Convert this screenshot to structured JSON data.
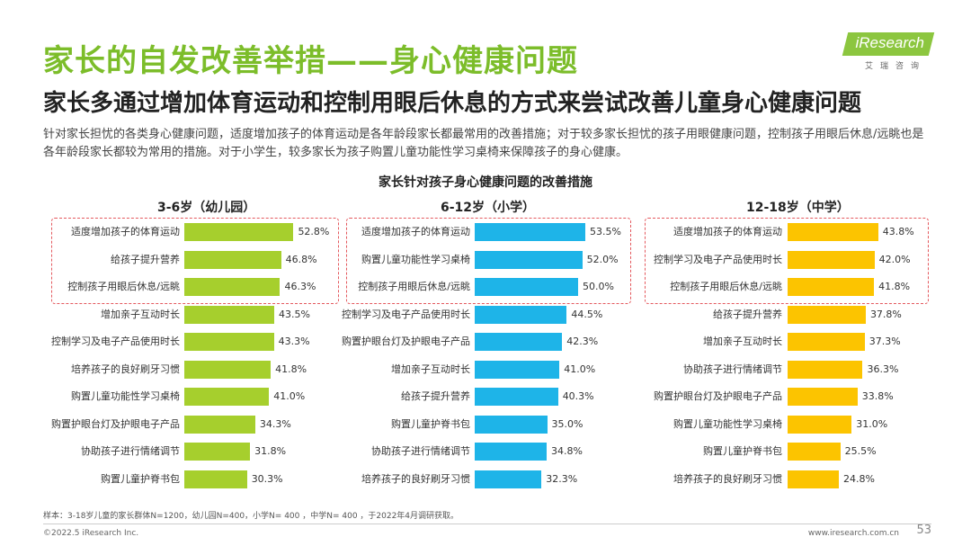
{
  "header": {
    "title": "家长的自发改善举措——身心健康问题",
    "subtitle": "家长多通过增加体育运动和控制用眼后休息的方式来尝试改善儿童身心健康问题",
    "description": "针对家长担忧的各类身心健康问题，适度增加孩子的体育运动是各年龄段家长都最常用的改善措施；对于较多家长担忧的孩子用眼健康问题，控制孩子用眼后休息/远眺也是各年龄段家长都较为常用的措施。对于小学生，较多家长为孩子购置儿童功能性学习桌椅来保障孩子的身心健康。"
  },
  "logo": {
    "text": "iResearch",
    "subtext": "艾瑞咨询"
  },
  "colors": {
    "accent": "#7cbd2a",
    "highlight_border": "#e4595e"
  },
  "chart_data": {
    "type": "bar",
    "title": "家长针对孩子身心健康问题的改善措施",
    "orientation": "horizontal",
    "value_unit": "%",
    "panels": [
      {
        "name": "3-6岁（幼儿园）",
        "color": "#a6cf2d",
        "highlight_top": 3,
        "categories": [
          "适度增加孩子的体育运动",
          "给孩子提升营养",
          "控制孩子用眼后休息/远眺",
          "增加亲子互动时长",
          "控制学习及电子产品使用时长",
          "培养孩子的良好刷牙习惯",
          "购置儿童功能性学习桌椅",
          "购置护眼台灯及护眼电子产品",
          "协助孩子进行情绪调节",
          "购置儿童护脊书包"
        ],
        "values": [
          52.8,
          46.8,
          46.3,
          43.5,
          43.3,
          41.8,
          41.0,
          34.3,
          31.8,
          30.3
        ]
      },
      {
        "name": "6-12岁（小学）",
        "color": "#1eb4e8",
        "highlight_top": 3,
        "categories": [
          "适度增加孩子的体育运动",
          "购置儿童功能性学习桌椅",
          "控制孩子用眼后休息/远眺",
          "控制学习及电子产品使用时长",
          "购置护眼台灯及护眼电子产品",
          "增加亲子互动时长",
          "给孩子提升营养",
          "购置儿童护脊书包",
          "协助孩子进行情绪调节",
          "培养孩子的良好刷牙习惯"
        ],
        "values": [
          53.5,
          52.0,
          50.0,
          44.5,
          42.3,
          41.0,
          40.3,
          35.0,
          34.8,
          32.3
        ]
      },
      {
        "name": "12-18岁（中学）",
        "color": "#fcc400",
        "highlight_top": 3,
        "categories": [
          "适度增加孩子的体育运动",
          "控制学习及电子产品使用时长",
          "控制孩子用眼后休息/远眺",
          "给孩子提升营养",
          "增加亲子互动时长",
          "协助孩子进行情绪调节",
          "购置护眼台灯及护眼电子产品",
          "购置儿童功能性学习桌椅",
          "购置儿童护脊书包",
          "培养孩子的良好刷牙习惯"
        ],
        "values": [
          43.8,
          42.0,
          41.8,
          37.8,
          37.3,
          36.3,
          33.8,
          31.0,
          25.5,
          24.8
        ]
      }
    ]
  },
  "footer": {
    "sample": "样本：3-18岁儿童的家长群体N=1200，幼儿园N=400，小学N= 400 ，中学N= 400 ，于2022年4月调研获取。",
    "copyright": "©2022.5 iResearch Inc.",
    "website": "www.iresearch.com.cn",
    "page": "53"
  }
}
